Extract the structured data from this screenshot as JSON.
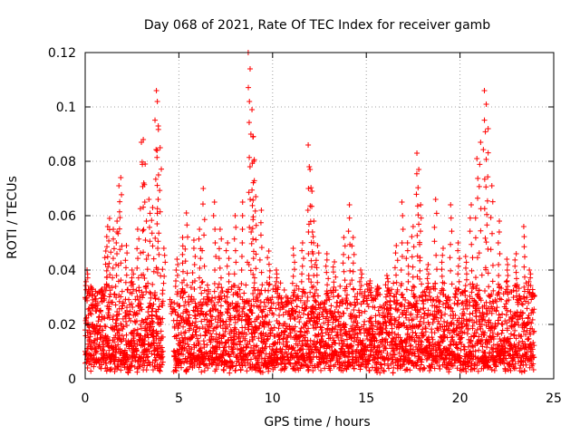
{
  "chart_data": {
    "type": "scatter",
    "title": "Day 068 of 2021, Rate Of TEC Index for receiver gamb",
    "xlabel": "GPS time / hours",
    "ylabel": "ROTI / TECUs",
    "xlim": [
      0,
      25
    ],
    "ylim": [
      0,
      0.12
    ],
    "xticks": [
      0,
      5,
      10,
      15,
      20,
      25
    ],
    "xtick_labels": [
      "0",
      "5",
      "10",
      "15",
      "20",
      "25"
    ],
    "yticks": [
      0,
      0.02,
      0.04,
      0.06,
      0.08,
      0.1,
      0.12
    ],
    "ytick_labels": [
      "0",
      "0.02",
      "0.04",
      "0.06",
      "0.08",
      "0.1",
      "0.12"
    ],
    "grid": true,
    "marker": "plus",
    "color": "#ff0000",
    "series": [
      {
        "name": "ROTI",
        "points": [
          [
            0.1,
            0.04
          ],
          [
            0.3,
            0.034
          ],
          [
            0.6,
            0.025
          ],
          [
            0.9,
            0.033
          ],
          [
            1.1,
            0.047
          ],
          [
            1.2,
            0.056
          ],
          [
            1.3,
            0.059
          ],
          [
            1.5,
            0.055
          ],
          [
            1.7,
            0.058
          ],
          [
            1.8,
            0.071
          ],
          [
            1.9,
            0.074
          ],
          [
            2.2,
            0.049
          ],
          [
            2.5,
            0.04
          ],
          [
            2.8,
            0.055
          ],
          [
            3.0,
            0.087
          ],
          [
            3.1,
            0.088
          ],
          [
            3.2,
            0.079
          ],
          [
            3.4,
            0.066
          ],
          [
            3.6,
            0.063
          ],
          [
            3.8,
            0.106
          ],
          [
            3.85,
            0.102
          ],
          [
            3.9,
            0.093
          ],
          [
            4.0,
            0.085
          ],
          [
            4.2,
            0.048
          ],
          [
            4.6,
            0.024
          ],
          [
            4.9,
            0.044
          ],
          [
            5.2,
            0.052
          ],
          [
            5.4,
            0.061
          ],
          [
            5.8,
            0.051
          ],
          [
            6.1,
            0.055
          ],
          [
            6.3,
            0.07
          ],
          [
            6.9,
            0.065
          ],
          [
            7.2,
            0.055
          ],
          [
            7.6,
            0.05
          ],
          [
            8.0,
            0.06
          ],
          [
            8.4,
            0.065
          ],
          [
            8.7,
            0.12
          ],
          [
            8.8,
            0.114
          ],
          [
            8.9,
            0.099
          ],
          [
            8.95,
            0.089
          ],
          [
            9.0,
            0.08
          ],
          [
            9.1,
            0.067
          ],
          [
            9.4,
            0.062
          ],
          [
            9.8,
            0.047
          ],
          [
            10.2,
            0.04
          ],
          [
            11.1,
            0.048
          ],
          [
            11.6,
            0.05
          ],
          [
            11.9,
            0.086
          ],
          [
            12.0,
            0.077
          ],
          [
            12.1,
            0.069
          ],
          [
            12.2,
            0.058
          ],
          [
            12.4,
            0.049
          ],
          [
            12.9,
            0.046
          ],
          [
            13.3,
            0.043
          ],
          [
            13.8,
            0.052
          ],
          [
            14.1,
            0.064
          ],
          [
            14.3,
            0.052
          ],
          [
            14.7,
            0.04
          ],
          [
            15.2,
            0.036
          ],
          [
            15.6,
            0.034
          ],
          [
            16.1,
            0.038
          ],
          [
            16.6,
            0.049
          ],
          [
            16.9,
            0.065
          ],
          [
            17.2,
            0.05
          ],
          [
            17.5,
            0.056
          ],
          [
            17.7,
            0.083
          ],
          [
            17.8,
            0.077
          ],
          [
            17.9,
            0.064
          ],
          [
            18.3,
            0.042
          ],
          [
            18.7,
            0.066
          ],
          [
            19.1,
            0.048
          ],
          [
            19.5,
            0.064
          ],
          [
            19.9,
            0.05
          ],
          [
            20.3,
            0.045
          ],
          [
            20.6,
            0.064
          ],
          [
            20.9,
            0.081
          ],
          [
            21.1,
            0.087
          ],
          [
            21.3,
            0.106
          ],
          [
            21.4,
            0.101
          ],
          [
            21.5,
            0.092
          ],
          [
            21.7,
            0.071
          ],
          [
            22.1,
            0.058
          ],
          [
            22.5,
            0.044
          ],
          [
            23.0,
            0.046
          ],
          [
            23.4,
            0.056
          ],
          [
            23.7,
            0.04
          ],
          [
            23.9,
            0.031
          ]
        ],
        "baseline_range": [
          0.002,
          0.03
        ]
      }
    ]
  }
}
